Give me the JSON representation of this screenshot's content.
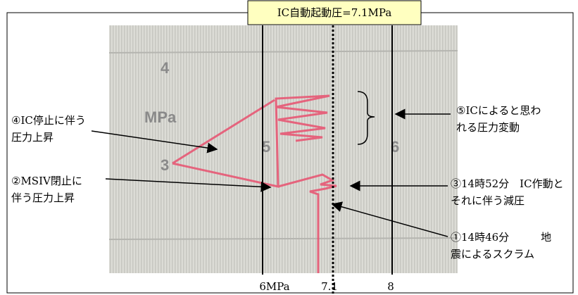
{
  "header": {
    "title": "IC自動起動圧=7.1MPa"
  },
  "axis_labels": [
    "6MPa",
    "7.1",
    "8"
  ],
  "paper_labels": [
    "4",
    "MPa",
    "3",
    "5",
    "6"
  ],
  "annotations": [
    {
      "lines": [
        "④IC停止に伴う",
        "圧力上昇"
      ]
    },
    {
      "lines": [
        "②MSIV閉止に",
        "伴う圧力上昇"
      ]
    },
    {
      "lines": [
        "⑤ICによると思わ",
        "れる圧力変動"
      ]
    },
    {
      "lines": [
        "③14時52分　IC作動と",
        "それに伴う減圧"
      ]
    },
    {
      "lines": [
        "①14時46分　　　地",
        "震によるスクラム"
      ]
    }
  ]
}
